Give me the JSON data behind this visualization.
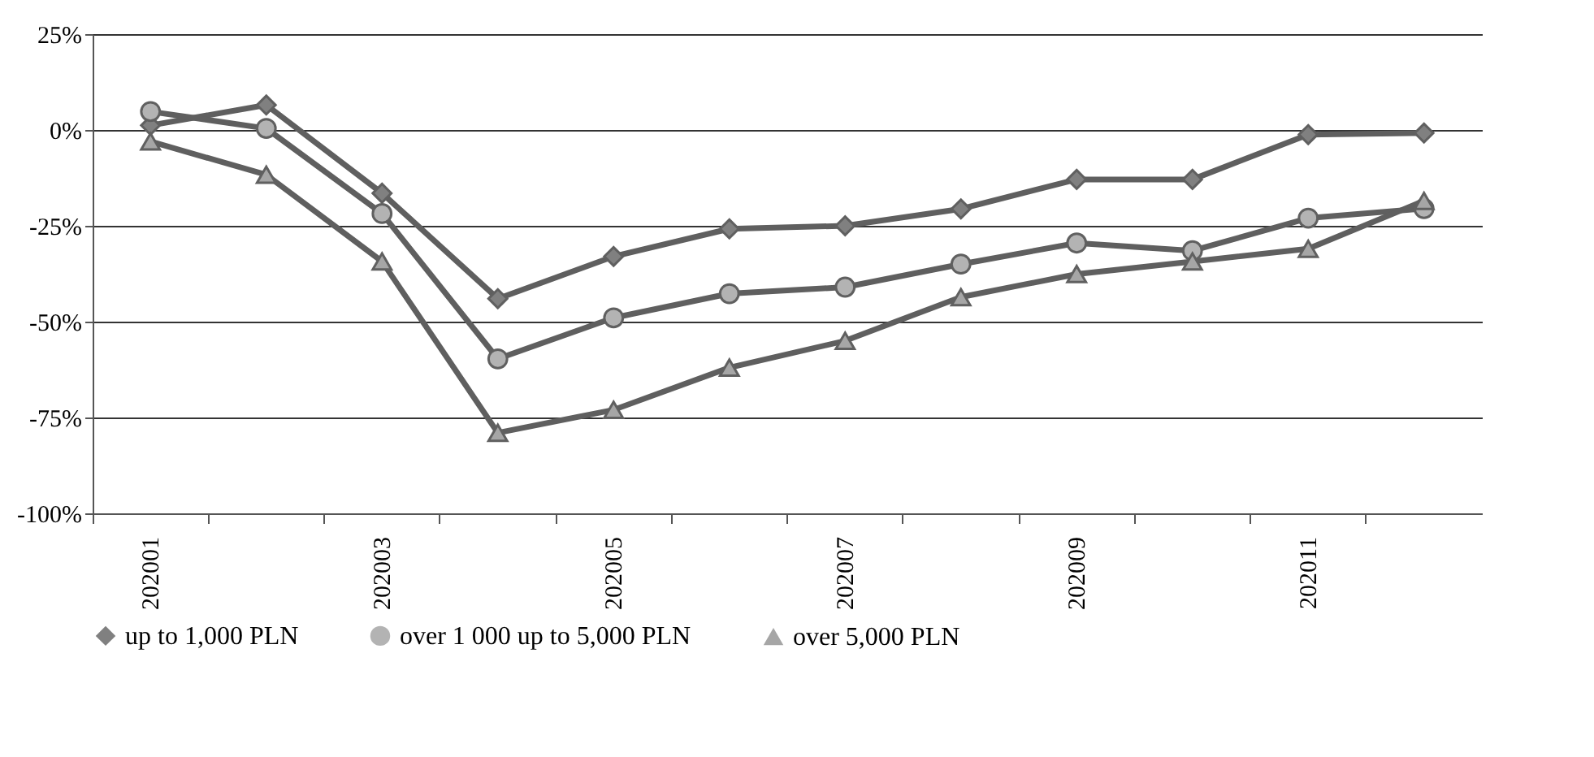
{
  "chart_data": {
    "type": "line",
    "categories": [
      "202001",
      null,
      "202003",
      null,
      "202005",
      null,
      "202007",
      null,
      "202009",
      null,
      "202011",
      null
    ],
    "series": [
      {
        "name": "up to 1,000 PLN",
        "color": "#808080",
        "marker": "diamond",
        "values": [
          1.2,
          6.5,
          -16.5,
          -44,
          -33,
          -25.8,
          -25,
          -20.6,
          -12.9,
          -12.9,
          -1.2,
          -0.8
        ]
      },
      {
        "name": "over 1 000 up to 5,000 PLN",
        "color": "#b3b3b3",
        "marker": "circle",
        "values": [
          4.8,
          0.4,
          -21.8,
          -59.7,
          -49,
          -42.7,
          -41,
          -35,
          -29.5,
          -31.5,
          -23,
          -20.5
        ]
      },
      {
        "name": "over 5,000 PLN",
        "color": "#a6a6a6",
        "marker": "triangle",
        "values": [
          -3,
          -11.7,
          -34.3,
          -79,
          -73,
          -62,
          -55,
          -43.6,
          -37.6,
          -34.3,
          -31,
          -18.5
        ]
      }
    ],
    "ylim": [
      -100,
      25
    ],
    "yticks": [
      {
        "value": 25,
        "label": "25%"
      },
      {
        "value": 0,
        "label": "0%"
      },
      {
        "value": -25,
        "label": "-25%"
      },
      {
        "value": -50,
        "label": "-50%"
      },
      {
        "value": -75,
        "label": "-75%"
      },
      {
        "value": -100,
        "label": "-100%"
      }
    ],
    "grid": "y",
    "legend": "bottom",
    "line_style": "solid"
  }
}
